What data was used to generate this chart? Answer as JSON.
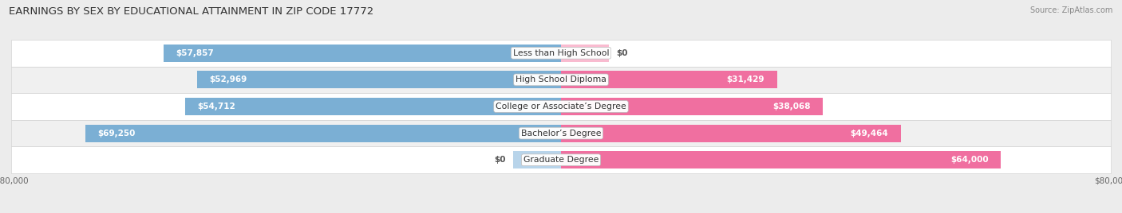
{
  "title": "EARNINGS BY SEX BY EDUCATIONAL ATTAINMENT IN ZIP CODE 17772",
  "source": "Source: ZipAtlas.com",
  "categories": [
    "Less than High School",
    "High School Diploma",
    "College or Associate’s Degree",
    "Bachelor’s Degree",
    "Graduate Degree"
  ],
  "male_values": [
    57857,
    52969,
    54712,
    69250,
    0
  ],
  "female_values": [
    0,
    31429,
    38068,
    49464,
    64000
  ],
  "male_labels": [
    "$57,857",
    "$52,969",
    "$54,712",
    "$69,250",
    "$0"
  ],
  "female_labels": [
    "$0",
    "$31,429",
    "$38,068",
    "$49,464",
    "$64,000"
  ],
  "male_color": "#7bafd4",
  "female_color": "#f06fa0",
  "male_stub_color": "#b8d4ea",
  "female_stub_color": "#f9bbd0",
  "axis_max": 80000,
  "stub_size": 7000,
  "bar_height": 0.65,
  "background_color": "#ececec",
  "row_colors": [
    "#ffffff",
    "#f0f0f0"
  ],
  "title_fontsize": 9.5,
  "label_fontsize": 7.8,
  "value_fontsize": 7.5,
  "tick_fontsize": 7.5,
  "source_fontsize": 7.0
}
